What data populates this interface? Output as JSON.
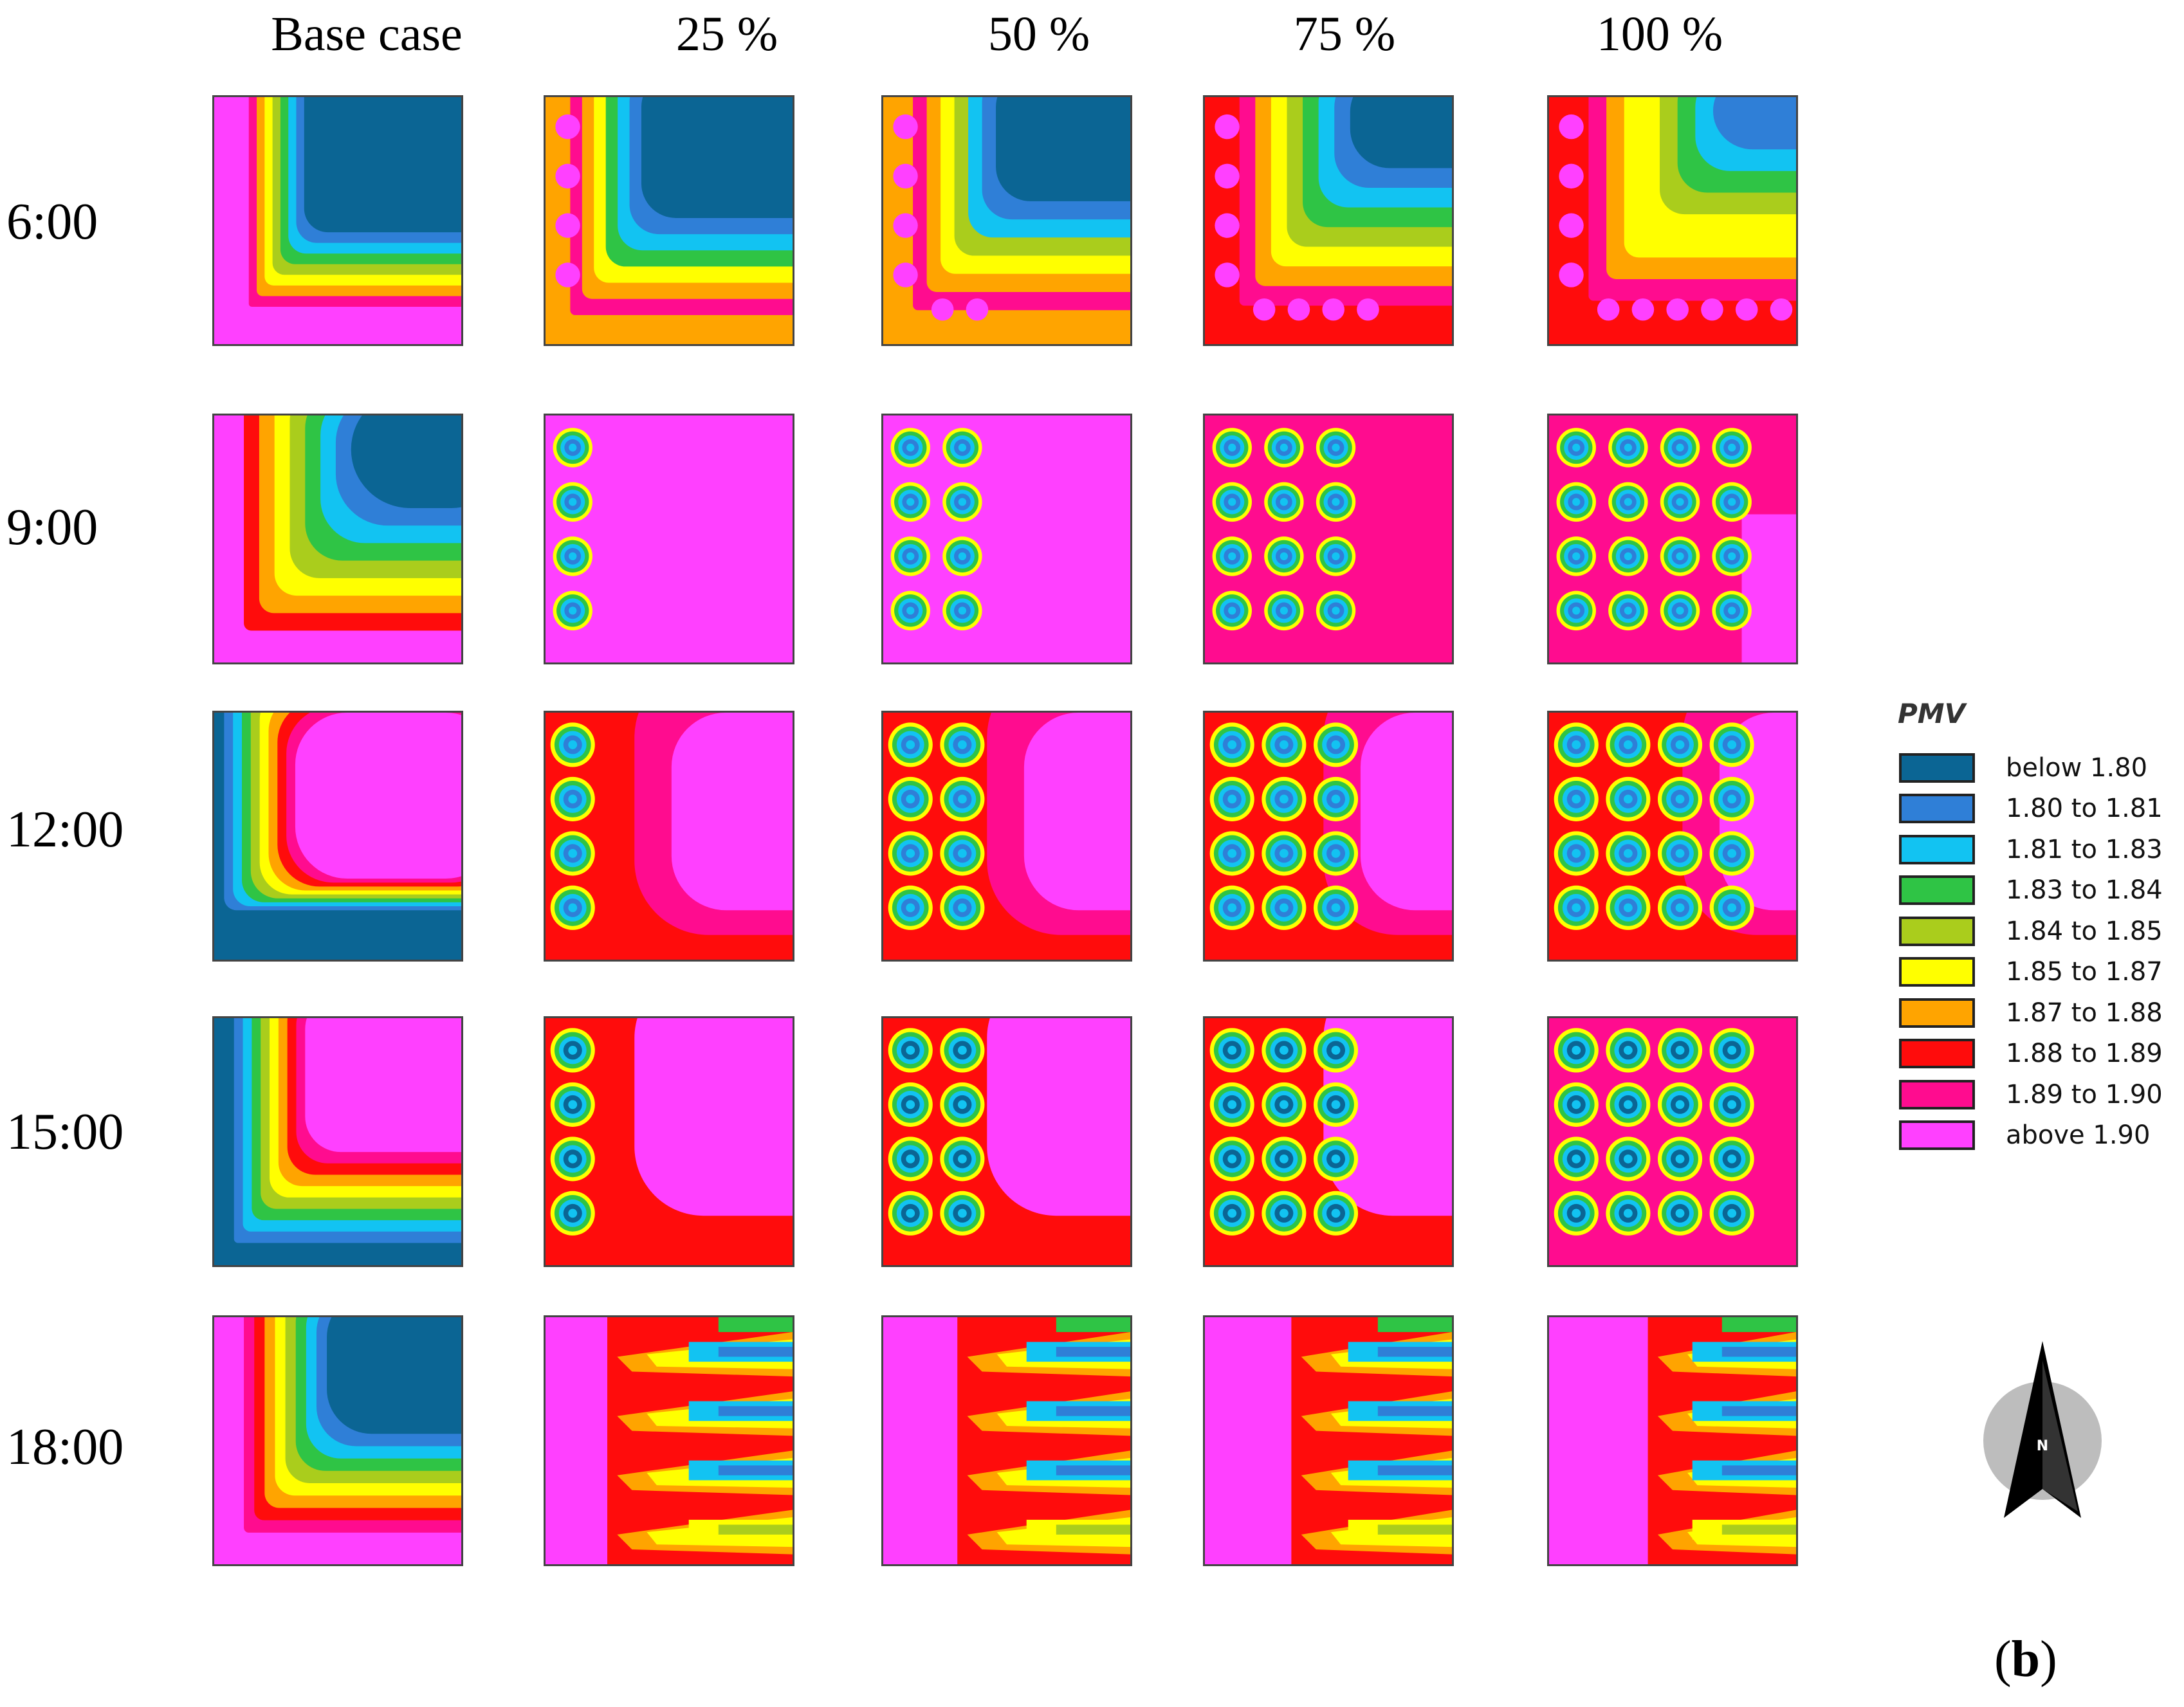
{
  "chart_data": {
    "type": "heatmap",
    "columns": [
      "Base case",
      "25 %",
      "50 %",
      "75 %",
      "100 %"
    ],
    "rows": [
      "6:00",
      "9:00",
      "12:00",
      "15:00",
      "18:00"
    ],
    "legend": {
      "title": "PMV",
      "entries": [
        {
          "label": "below 1.80",
          "color": "#0b6594"
        },
        {
          "label": "1.80 to 1.81",
          "color": "#2f7fd7"
        },
        {
          "label": "1.81 to 1.83",
          "color": "#12c3f2"
        },
        {
          "label": "1.83 to 1.84",
          "color": "#2fc445"
        },
        {
          "label": "1.84 to 1.85",
          "color": "#aacd1c"
        },
        {
          "label": "1.85 to 1.87",
          "color": "#ffff00"
        },
        {
          "label": "1.87 to 1.88",
          "color": "#ffa400"
        },
        {
          "label": "1.88 to 1.89",
          "color": "#ff0c0c"
        },
        {
          "label": "1.89 to 1.90",
          "color": "#ff0c8f"
        },
        {
          "label": "above 1.90",
          "color": "#ff40ff"
        }
      ]
    },
    "tree_counts": {
      "6:00": [
        0,
        4,
        4,
        4,
        4
      ],
      "9:00": [
        0,
        4,
        8,
        12,
        16
      ],
      "12:00": [
        0,
        4,
        8,
        12,
        16
      ],
      "15:00": [
        0,
        4,
        8,
        12,
        16
      ],
      "18:00": [
        0,
        4,
        4,
        4,
        4
      ]
    },
    "compass": "N",
    "subfigure_label": "b"
  }
}
